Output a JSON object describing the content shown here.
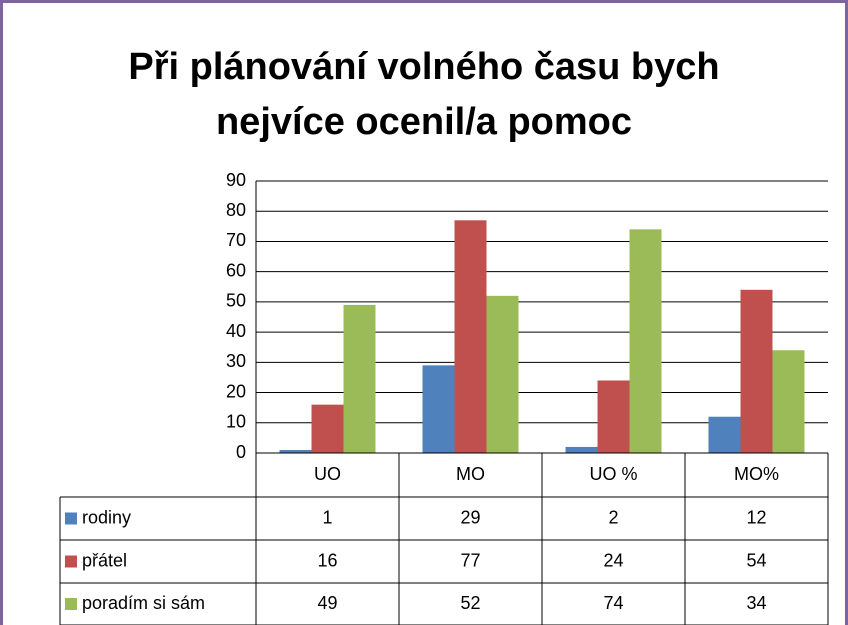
{
  "chart_data": {
    "type": "bar",
    "title": "Při plánování volného času bych nejvíce ocenil/a pomoc",
    "categories": [
      "UO",
      "MO",
      "UO %",
      "MO%"
    ],
    "series": [
      {
        "name": "rodiny",
        "color": "#4f81bd",
        "values": [
          1,
          29,
          2,
          12
        ]
      },
      {
        "name": "přátel",
        "color": "#c0504d",
        "values": [
          16,
          77,
          24,
          54
        ]
      },
      {
        "name": "poradím si sám",
        "color": "#9bbb59",
        "values": [
          49,
          52,
          74,
          34
        ]
      }
    ],
    "ylim": [
      0,
      90
    ],
    "yticks": [
      0,
      10,
      20,
      30,
      40,
      50,
      60,
      70,
      80,
      90
    ],
    "grid": true
  }
}
